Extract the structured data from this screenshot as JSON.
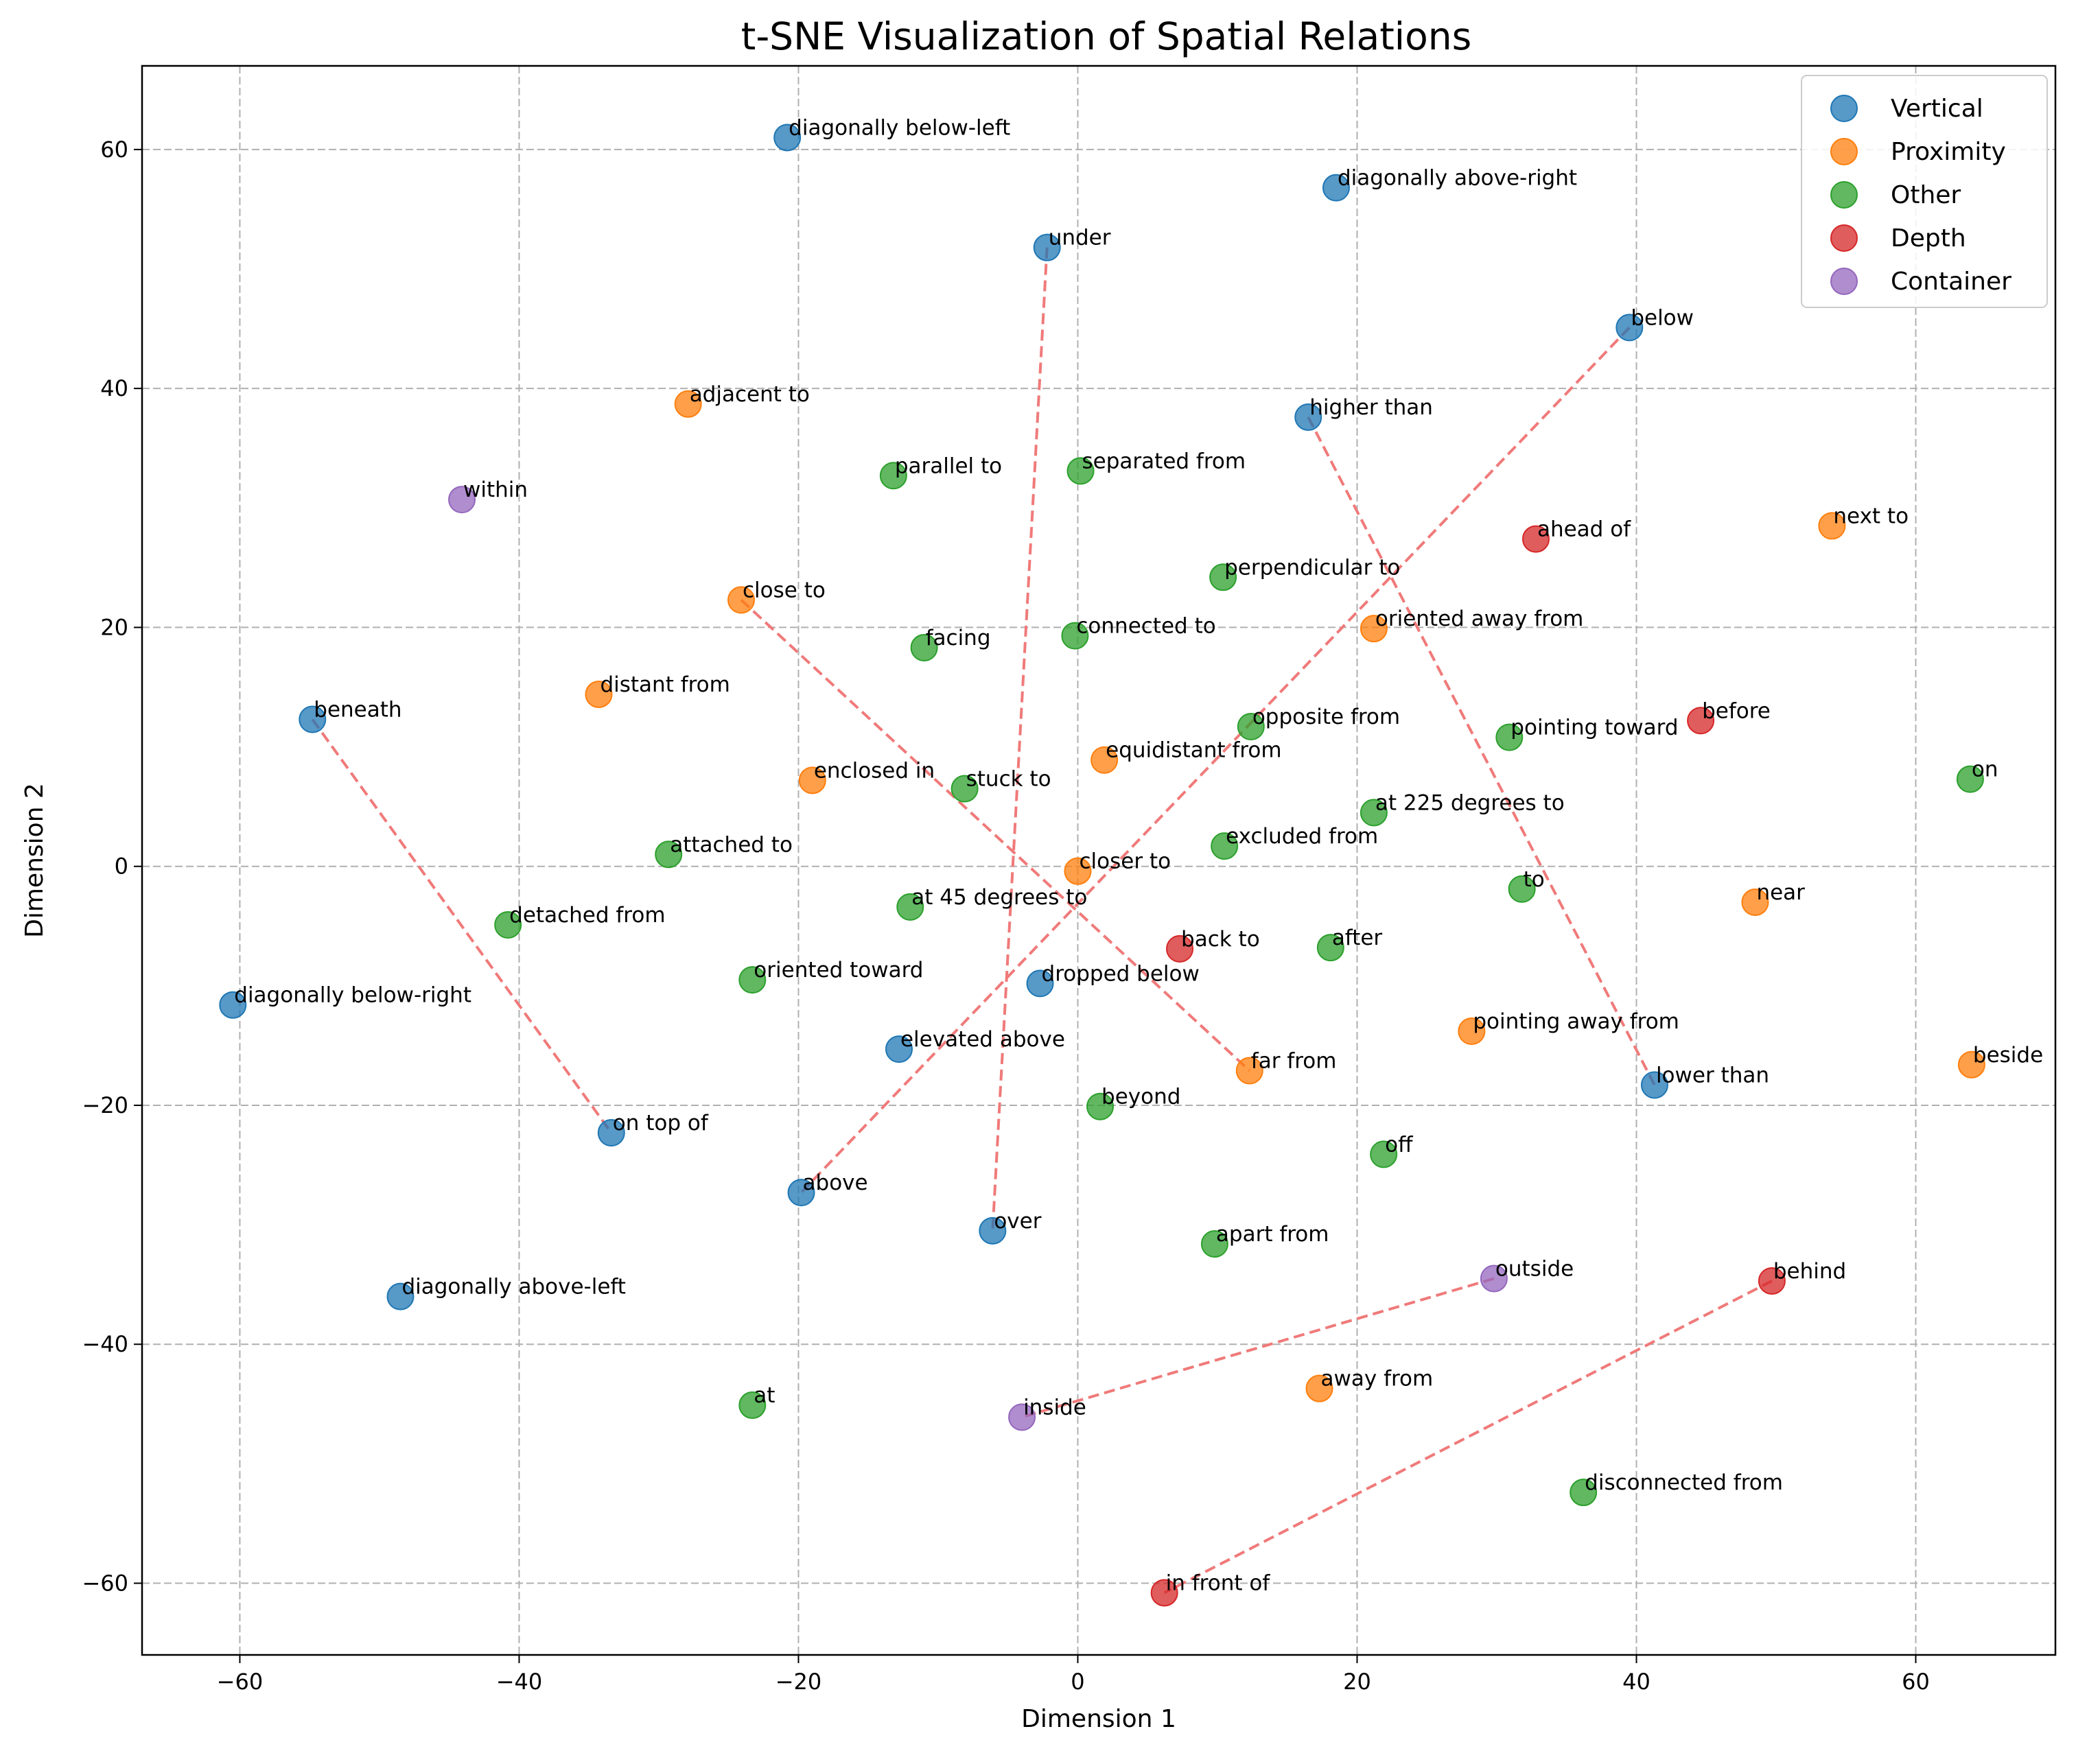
{
  "chart_data": {
    "type": "scatter",
    "title": "t-SNE Visualization of Spatial Relations",
    "xlabel": "Dimension 1",
    "ylabel": "Dimension 2",
    "xlim": [
      -67,
      70
    ],
    "ylim": [
      -66,
      67
    ],
    "xticks": [
      -60,
      -40,
      -20,
      0,
      20,
      40,
      60
    ],
    "yticks": [
      -60,
      -40,
      -20,
      0,
      20,
      40,
      60
    ],
    "grid": true,
    "legend_position": "top-right",
    "series": [
      {
        "name": "Vertical",
        "color": "#1f77b4",
        "points": [
          {
            "label": "diagonally below-left",
            "x": -20.8,
            "y": 61.0
          },
          {
            "label": "diagonally above-right",
            "x": 18.5,
            "y": 56.8
          },
          {
            "label": "under",
            "x": -2.2,
            "y": 51.8
          },
          {
            "label": "below",
            "x": 39.5,
            "y": 45.1
          },
          {
            "label": "higher than",
            "x": 16.5,
            "y": 37.6
          },
          {
            "label": "beneath",
            "x": -54.8,
            "y": 12.3
          },
          {
            "label": "diagonally below-right",
            "x": -60.5,
            "y": -11.6
          },
          {
            "label": "dropped below",
            "x": -2.7,
            "y": -9.8
          },
          {
            "label": "elevated above",
            "x": -12.8,
            "y": -15.3
          },
          {
            "label": "lower than",
            "x": 41.3,
            "y": -18.3
          },
          {
            "label": "on top of",
            "x": -33.4,
            "y": -22.3
          },
          {
            "label": "above",
            "x": -19.8,
            "y": -27.3
          },
          {
            "label": "over",
            "x": -6.1,
            "y": -30.5
          },
          {
            "label": "diagonally above-left",
            "x": -48.5,
            "y": -36.0
          }
        ]
      },
      {
        "name": "Proximity",
        "color": "#ff7f0e",
        "points": [
          {
            "label": "adjacent to",
            "x": -27.9,
            "y": 38.7
          },
          {
            "label": "next to",
            "x": 54.0,
            "y": 28.5
          },
          {
            "label": "close to",
            "x": -24.1,
            "y": 22.3
          },
          {
            "label": "oriented away from",
            "x": 21.2,
            "y": 19.9
          },
          {
            "label": "distant from",
            "x": -34.3,
            "y": 14.4
          },
          {
            "label": "equidistant from",
            "x": 1.9,
            "y": 8.9
          },
          {
            "label": "enclosed in",
            "x": -19.0,
            "y": 7.2
          },
          {
            "label": "closer to",
            "x": 0.0,
            "y": -0.4
          },
          {
            "label": "near",
            "x": 48.5,
            "y": -3.0
          },
          {
            "label": "pointing away from",
            "x": 28.2,
            "y": -13.8
          },
          {
            "label": "beside",
            "x": 64.0,
            "y": -16.6
          },
          {
            "label": "far from",
            "x": 12.3,
            "y": -17.1
          },
          {
            "label": "away from",
            "x": 17.3,
            "y": -43.7
          }
        ]
      },
      {
        "name": "Other",
        "color": "#2ca02c",
        "points": [
          {
            "label": "parallel to",
            "x": -13.2,
            "y": 32.7
          },
          {
            "label": "separated from",
            "x": 0.2,
            "y": 33.1
          },
          {
            "label": "perpendicular to",
            "x": 10.4,
            "y": 24.2
          },
          {
            "label": "facing",
            "x": -11.0,
            "y": 18.3
          },
          {
            "label": "connected to",
            "x": -0.2,
            "y": 19.3
          },
          {
            "label": "opposite from",
            "x": 12.4,
            "y": 11.7
          },
          {
            "label": "pointing toward",
            "x": 30.9,
            "y": 10.8
          },
          {
            "label": "on",
            "x": 63.9,
            "y": 7.3
          },
          {
            "label": "stuck to",
            "x": -8.1,
            "y": 6.5
          },
          {
            "label": "at 225 degrees to",
            "x": 21.2,
            "y": 4.5
          },
          {
            "label": "attached to",
            "x": -29.3,
            "y": 1.0
          },
          {
            "label": "excluded from",
            "x": 10.5,
            "y": 1.7
          },
          {
            "label": "to",
            "x": 31.8,
            "y": -1.9
          },
          {
            "label": "at 45 degrees to",
            "x": -12.0,
            "y": -3.4
          },
          {
            "label": "detached from",
            "x": -40.8,
            "y": -4.9
          },
          {
            "label": "after",
            "x": 18.1,
            "y": -6.8
          },
          {
            "label": "oriented toward",
            "x": -23.3,
            "y": -9.5
          },
          {
            "label": "beyond",
            "x": 1.6,
            "y": -20.1
          },
          {
            "label": "off",
            "x": 21.9,
            "y": -24.1
          },
          {
            "label": "apart from",
            "x": 9.8,
            "y": -31.6
          },
          {
            "label": "at",
            "x": -23.3,
            "y": -45.1
          },
          {
            "label": "disconnected from",
            "x": 36.2,
            "y": -52.4
          }
        ]
      },
      {
        "name": "Depth",
        "color": "#d62728",
        "points": [
          {
            "label": "ahead of",
            "x": 32.8,
            "y": 27.4
          },
          {
            "label": "before",
            "x": 44.6,
            "y": 12.2
          },
          {
            "label": "back to",
            "x": 7.3,
            "y": -6.9
          },
          {
            "label": "behind",
            "x": 49.7,
            "y": -34.7
          },
          {
            "label": "in front of",
            "x": 6.2,
            "y": -60.8
          }
        ]
      },
      {
        "name": "Container",
        "color": "#9467bd",
        "points": [
          {
            "label": "within",
            "x": -44.1,
            "y": 30.7
          },
          {
            "label": "outside",
            "x": 29.8,
            "y": -34.5
          },
          {
            "label": "inside",
            "x": -4.0,
            "y": -46.1
          }
        ]
      }
    ],
    "pair_lines": [
      {
        "from": "under",
        "to": "over"
      },
      {
        "from": "below",
        "to": "above"
      },
      {
        "from": "higher than",
        "to": "lower than"
      },
      {
        "from": "beneath",
        "to": "on top of"
      },
      {
        "from": "close to",
        "to": "far from"
      },
      {
        "from": "outside",
        "to": "inside"
      },
      {
        "from": "behind",
        "to": "in front of"
      }
    ],
    "pair_line_color": "#f07a7a"
  }
}
